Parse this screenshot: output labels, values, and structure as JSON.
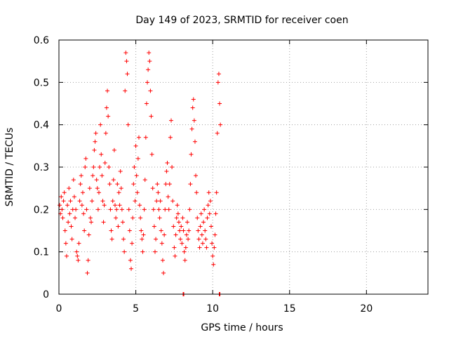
{
  "chart_data": {
    "type": "scatter",
    "title": "Day 149 of 2023, SRMTID for receiver coen",
    "xlabel": "GPS time / hours",
    "ylabel": "SRMTID / TECUs",
    "xlim": [
      0,
      24
    ],
    "ylim": [
      0,
      0.6
    ],
    "xticks": [
      0,
      5,
      10,
      15,
      20
    ],
    "yticks": [
      0,
      0.1,
      0.2,
      0.3,
      0.4,
      0.5,
      0.6
    ],
    "xtick_labels": [
      "0",
      "5",
      "10",
      "15",
      "20"
    ],
    "ytick_labels": [
      "0",
      "0.1",
      "0.2",
      "0.3",
      "0.4",
      "0.5",
      "0.6"
    ],
    "grid": true,
    "marker": "+",
    "series": [
      {
        "name": "SRMTID",
        "color": "#ff0000",
        "points": [
          [
            0.05,
            0.21
          ],
          [
            0.1,
            0.19
          ],
          [
            0.15,
            0.23
          ],
          [
            0.2,
            0.2
          ],
          [
            0.25,
            0.18
          ],
          [
            0.3,
            0.22
          ],
          [
            0.35,
            0.24
          ],
          [
            0.4,
            0.15
          ],
          [
            0.45,
            0.12
          ],
          [
            0.5,
            0.09
          ],
          [
            0.55,
            0.21
          ],
          [
            0.6,
            0.17
          ],
          [
            0.65,
            0.25
          ],
          [
            0.7,
            0.19
          ],
          [
            0.75,
            0.22
          ],
          [
            0.8,
            0.16
          ],
          [
            0.85,
            0.13
          ],
          [
            0.9,
            0.2
          ],
          [
            0.95,
            0.27
          ],
          [
            1.0,
            0.23
          ],
          [
            1.05,
            0.18
          ],
          [
            1.1,
            0.2
          ],
          [
            1.15,
            0.1
          ],
          [
            1.2,
            0.09
          ],
          [
            1.25,
            0.08
          ],
          [
            1.3,
            0.12
          ],
          [
            1.35,
            0.22
          ],
          [
            1.4,
            0.26
          ],
          [
            1.45,
            0.28
          ],
          [
            1.5,
            0.21
          ],
          [
            1.55,
            0.24
          ],
          [
            1.6,
            0.19
          ],
          [
            1.65,
            0.15
          ],
          [
            1.7,
            0.3
          ],
          [
            1.75,
            0.32
          ],
          [
            1.8,
            0.2
          ],
          [
            1.85,
            0.05
          ],
          [
            1.9,
            0.08
          ],
          [
            1.95,
            0.14
          ],
          [
            2.0,
            0.25
          ],
          [
            2.05,
            0.18
          ],
          [
            2.1,
            0.17
          ],
          [
            2.15,
            0.22
          ],
          [
            2.2,
            0.28
          ],
          [
            2.25,
            0.3
          ],
          [
            2.3,
            0.34
          ],
          [
            2.35,
            0.36
          ],
          [
            2.4,
            0.38
          ],
          [
            2.45,
            0.27
          ],
          [
            2.5,
            0.25
          ],
          [
            2.55,
            0.2
          ],
          [
            2.6,
            0.24
          ],
          [
            2.65,
            0.3
          ],
          [
            2.7,
            0.4
          ],
          [
            2.75,
            0.33
          ],
          [
            2.8,
            0.28
          ],
          [
            2.85,
            0.22
          ],
          [
            2.9,
            0.17
          ],
          [
            2.95,
            0.21
          ],
          [
            3.0,
            0.31
          ],
          [
            3.05,
            0.38
          ],
          [
            3.1,
            0.44
          ],
          [
            3.15,
            0.48
          ],
          [
            3.2,
            0.42
          ],
          [
            3.25,
            0.3
          ],
          [
            3.3,
            0.26
          ],
          [
            3.35,
            0.2
          ],
          [
            3.4,
            0.15
          ],
          [
            3.45,
            0.13
          ],
          [
            3.5,
            0.22
          ],
          [
            3.55,
            0.27
          ],
          [
            3.6,
            0.34
          ],
          [
            3.65,
            0.21
          ],
          [
            3.7,
            0.18
          ],
          [
            3.75,
            0.2
          ],
          [
            3.8,
            0.26
          ],
          [
            3.85,
            0.16
          ],
          [
            3.9,
            0.24
          ],
          [
            3.95,
            0.21
          ],
          [
            4.0,
            0.29
          ],
          [
            4.05,
            0.25
          ],
          [
            4.1,
            0.2
          ],
          [
            4.15,
            0.17
          ],
          [
            4.2,
            0.13
          ],
          [
            4.25,
            0.1
          ],
          [
            4.3,
            0.48
          ],
          [
            4.35,
            0.57
          ],
          [
            4.4,
            0.55
          ],
          [
            4.45,
            0.52
          ],
          [
            4.5,
            0.4
          ],
          [
            4.55,
            0.2
          ],
          [
            4.6,
            0.15
          ],
          [
            4.65,
            0.08
          ],
          [
            4.7,
            0.06
          ],
          [
            4.75,
            0.12
          ],
          [
            4.8,
            0.18
          ],
          [
            4.85,
            0.26
          ],
          [
            4.9,
            0.3
          ],
          [
            4.95,
            0.22
          ],
          [
            5.0,
            0.35
          ],
          [
            5.05,
            0.28
          ],
          [
            5.1,
            0.24
          ],
          [
            5.15,
            0.32
          ],
          [
            5.2,
            0.37
          ],
          [
            5.25,
            0.21
          ],
          [
            5.3,
            0.18
          ],
          [
            5.35,
            0.15
          ],
          [
            5.4,
            0.13
          ],
          [
            5.45,
            0.1
          ],
          [
            5.5,
            0.14
          ],
          [
            5.55,
            0.2
          ],
          [
            5.6,
            0.27
          ],
          [
            5.65,
            0.37
          ],
          [
            5.7,
            0.45
          ],
          [
            5.75,
            0.5
          ],
          [
            5.8,
            0.53
          ],
          [
            5.85,
            0.57
          ],
          [
            5.9,
            0.55
          ],
          [
            5.95,
            0.48
          ],
          [
            6.0,
            0.42
          ],
          [
            6.05,
            0.33
          ],
          [
            6.1,
            0.25
          ],
          [
            6.15,
            0.2
          ],
          [
            6.2,
            0.16
          ],
          [
            6.25,
            0.1
          ],
          [
            6.3,
            0.13
          ],
          [
            6.35,
            0.22
          ],
          [
            6.4,
            0.26
          ],
          [
            6.45,
            0.24
          ],
          [
            6.5,
            0.2
          ],
          [
            6.55,
            0.18
          ],
          [
            6.6,
            0.22
          ],
          [
            6.65,
            0.15
          ],
          [
            6.7,
            0.12
          ],
          [
            6.75,
            0.08
          ],
          [
            6.8,
            0.05
          ],
          [
            6.85,
            0.14
          ],
          [
            6.9,
            0.2
          ],
          [
            6.95,
            0.26
          ],
          [
            7.0,
            0.29
          ],
          [
            7.05,
            0.31
          ],
          [
            7.1,
            0.23
          ],
          [
            7.15,
            0.2
          ],
          [
            7.2,
            0.26
          ],
          [
            7.25,
            0.37
          ],
          [
            7.3,
            0.41
          ],
          [
            7.35,
            0.3
          ],
          [
            7.4,
            0.22
          ],
          [
            7.45,
            0.16
          ],
          [
            7.5,
            0.11
          ],
          [
            7.55,
            0.09
          ],
          [
            7.6,
            0.14
          ],
          [
            7.65,
            0.18
          ],
          [
            7.7,
            0.21
          ],
          [
            7.75,
            0.19
          ],
          [
            7.8,
            0.17
          ],
          [
            7.85,
            0.15
          ],
          [
            7.9,
            0.13
          ],
          [
            7.95,
            0.16
          ],
          [
            8.0,
            0.12
          ],
          [
            8.05,
            0.18
          ],
          [
            8.1,
            0.15
          ],
          [
            8.15,
            0.1
          ],
          [
            8.2,
            0.08
          ],
          [
            8.25,
            0.11
          ],
          [
            8.3,
            0.14
          ],
          [
            8.35,
            0.17
          ],
          [
            8.4,
            0.13
          ],
          [
            8.45,
            0.15
          ],
          [
            8.5,
            0.2
          ],
          [
            8.55,
            0.26
          ],
          [
            8.6,
            0.33
          ],
          [
            8.65,
            0.39
          ],
          [
            8.7,
            0.44
          ],
          [
            8.75,
            0.46
          ],
          [
            8.8,
            0.41
          ],
          [
            8.85,
            0.36
          ],
          [
            8.9,
            0.28
          ],
          [
            8.95,
            0.24
          ],
          [
            9.0,
            0.18
          ],
          [
            9.05,
            0.15
          ],
          [
            9.1,
            0.13
          ],
          [
            9.15,
            0.11
          ],
          [
            9.2,
            0.16
          ],
          [
            9.25,
            0.19
          ],
          [
            9.3,
            0.14
          ],
          [
            9.35,
            0.12
          ],
          [
            9.4,
            0.17
          ],
          [
            9.45,
            0.2
          ],
          [
            9.5,
            0.15
          ],
          [
            9.55,
            0.13
          ],
          [
            9.6,
            0.11
          ],
          [
            9.65,
            0.18
          ],
          [
            9.7,
            0.21
          ],
          [
            9.75,
            0.24
          ],
          [
            9.8,
            0.19
          ],
          [
            9.85,
            0.22
          ],
          [
            9.9,
            0.16
          ],
          [
            9.95,
            0.12
          ],
          [
            10.0,
            0.09
          ],
          [
            10.05,
            0.07
          ],
          [
            10.1,
            0.11
          ],
          [
            10.15,
            0.14
          ],
          [
            10.2,
            0.19
          ],
          [
            10.25,
            0.24
          ],
          [
            10.3,
            0.38
          ],
          [
            10.35,
            0.5
          ],
          [
            10.4,
            0.52
          ],
          [
            10.45,
            0.45
          ],
          [
            10.5,
            0.4
          ]
        ]
      }
    ],
    "ticks_at_zero": [
      8.1,
      10.45
    ]
  }
}
